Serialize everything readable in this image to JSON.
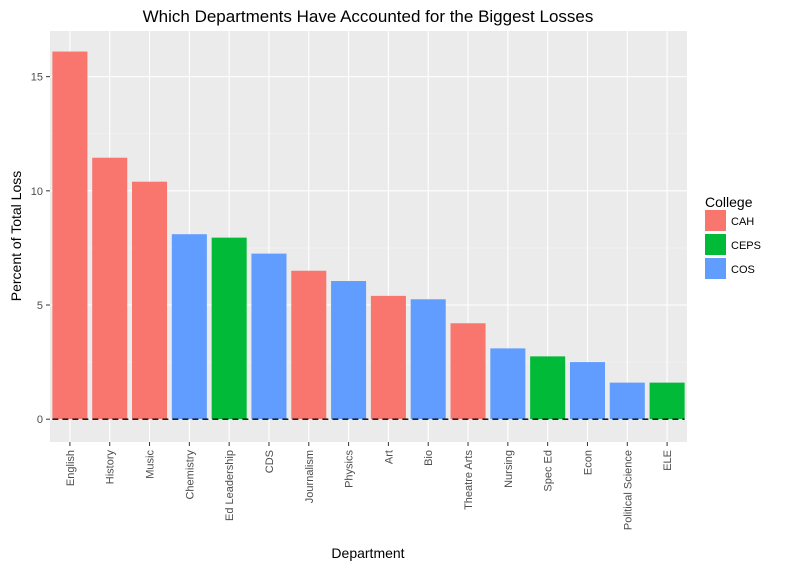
{
  "chart_data": {
    "type": "bar",
    "title": "Which Departments Have Accounted for the Biggest Losses",
    "xlabel": "Department",
    "ylabel": "Percent of Total Loss",
    "ylim": [
      -1.0,
      17.0
    ],
    "yticks": [
      0,
      5,
      10,
      15
    ],
    "grid": true,
    "legend_position": "right",
    "legend_title": "College",
    "legend": [
      {
        "name": "CAH",
        "color": "#F8766D"
      },
      {
        "name": "CEPS",
        "color": "#00BA38"
      },
      {
        "name": "COS",
        "color": "#619CFF"
      }
    ],
    "categories": [
      "English",
      "History",
      "Music",
      "Chemistry",
      "Ed Leadership",
      "CDS",
      "Journalism",
      "Physics",
      "Art",
      "Bio",
      "Theatre Arts",
      "Nursing",
      "Spec Ed",
      "Econ",
      "Political Science",
      "ELE"
    ],
    "values": [
      16.1,
      11.45,
      10.4,
      8.1,
      7.95,
      7.25,
      6.5,
      6.05,
      5.4,
      5.25,
      4.2,
      3.1,
      2.75,
      2.5,
      1.6,
      1.6
    ],
    "colleges": [
      "CAH",
      "CAH",
      "CAH",
      "COS",
      "CEPS",
      "COS",
      "CAH",
      "COS",
      "CAH",
      "COS",
      "CAH",
      "COS",
      "CEPS",
      "COS",
      "COS",
      "CEPS"
    ]
  }
}
